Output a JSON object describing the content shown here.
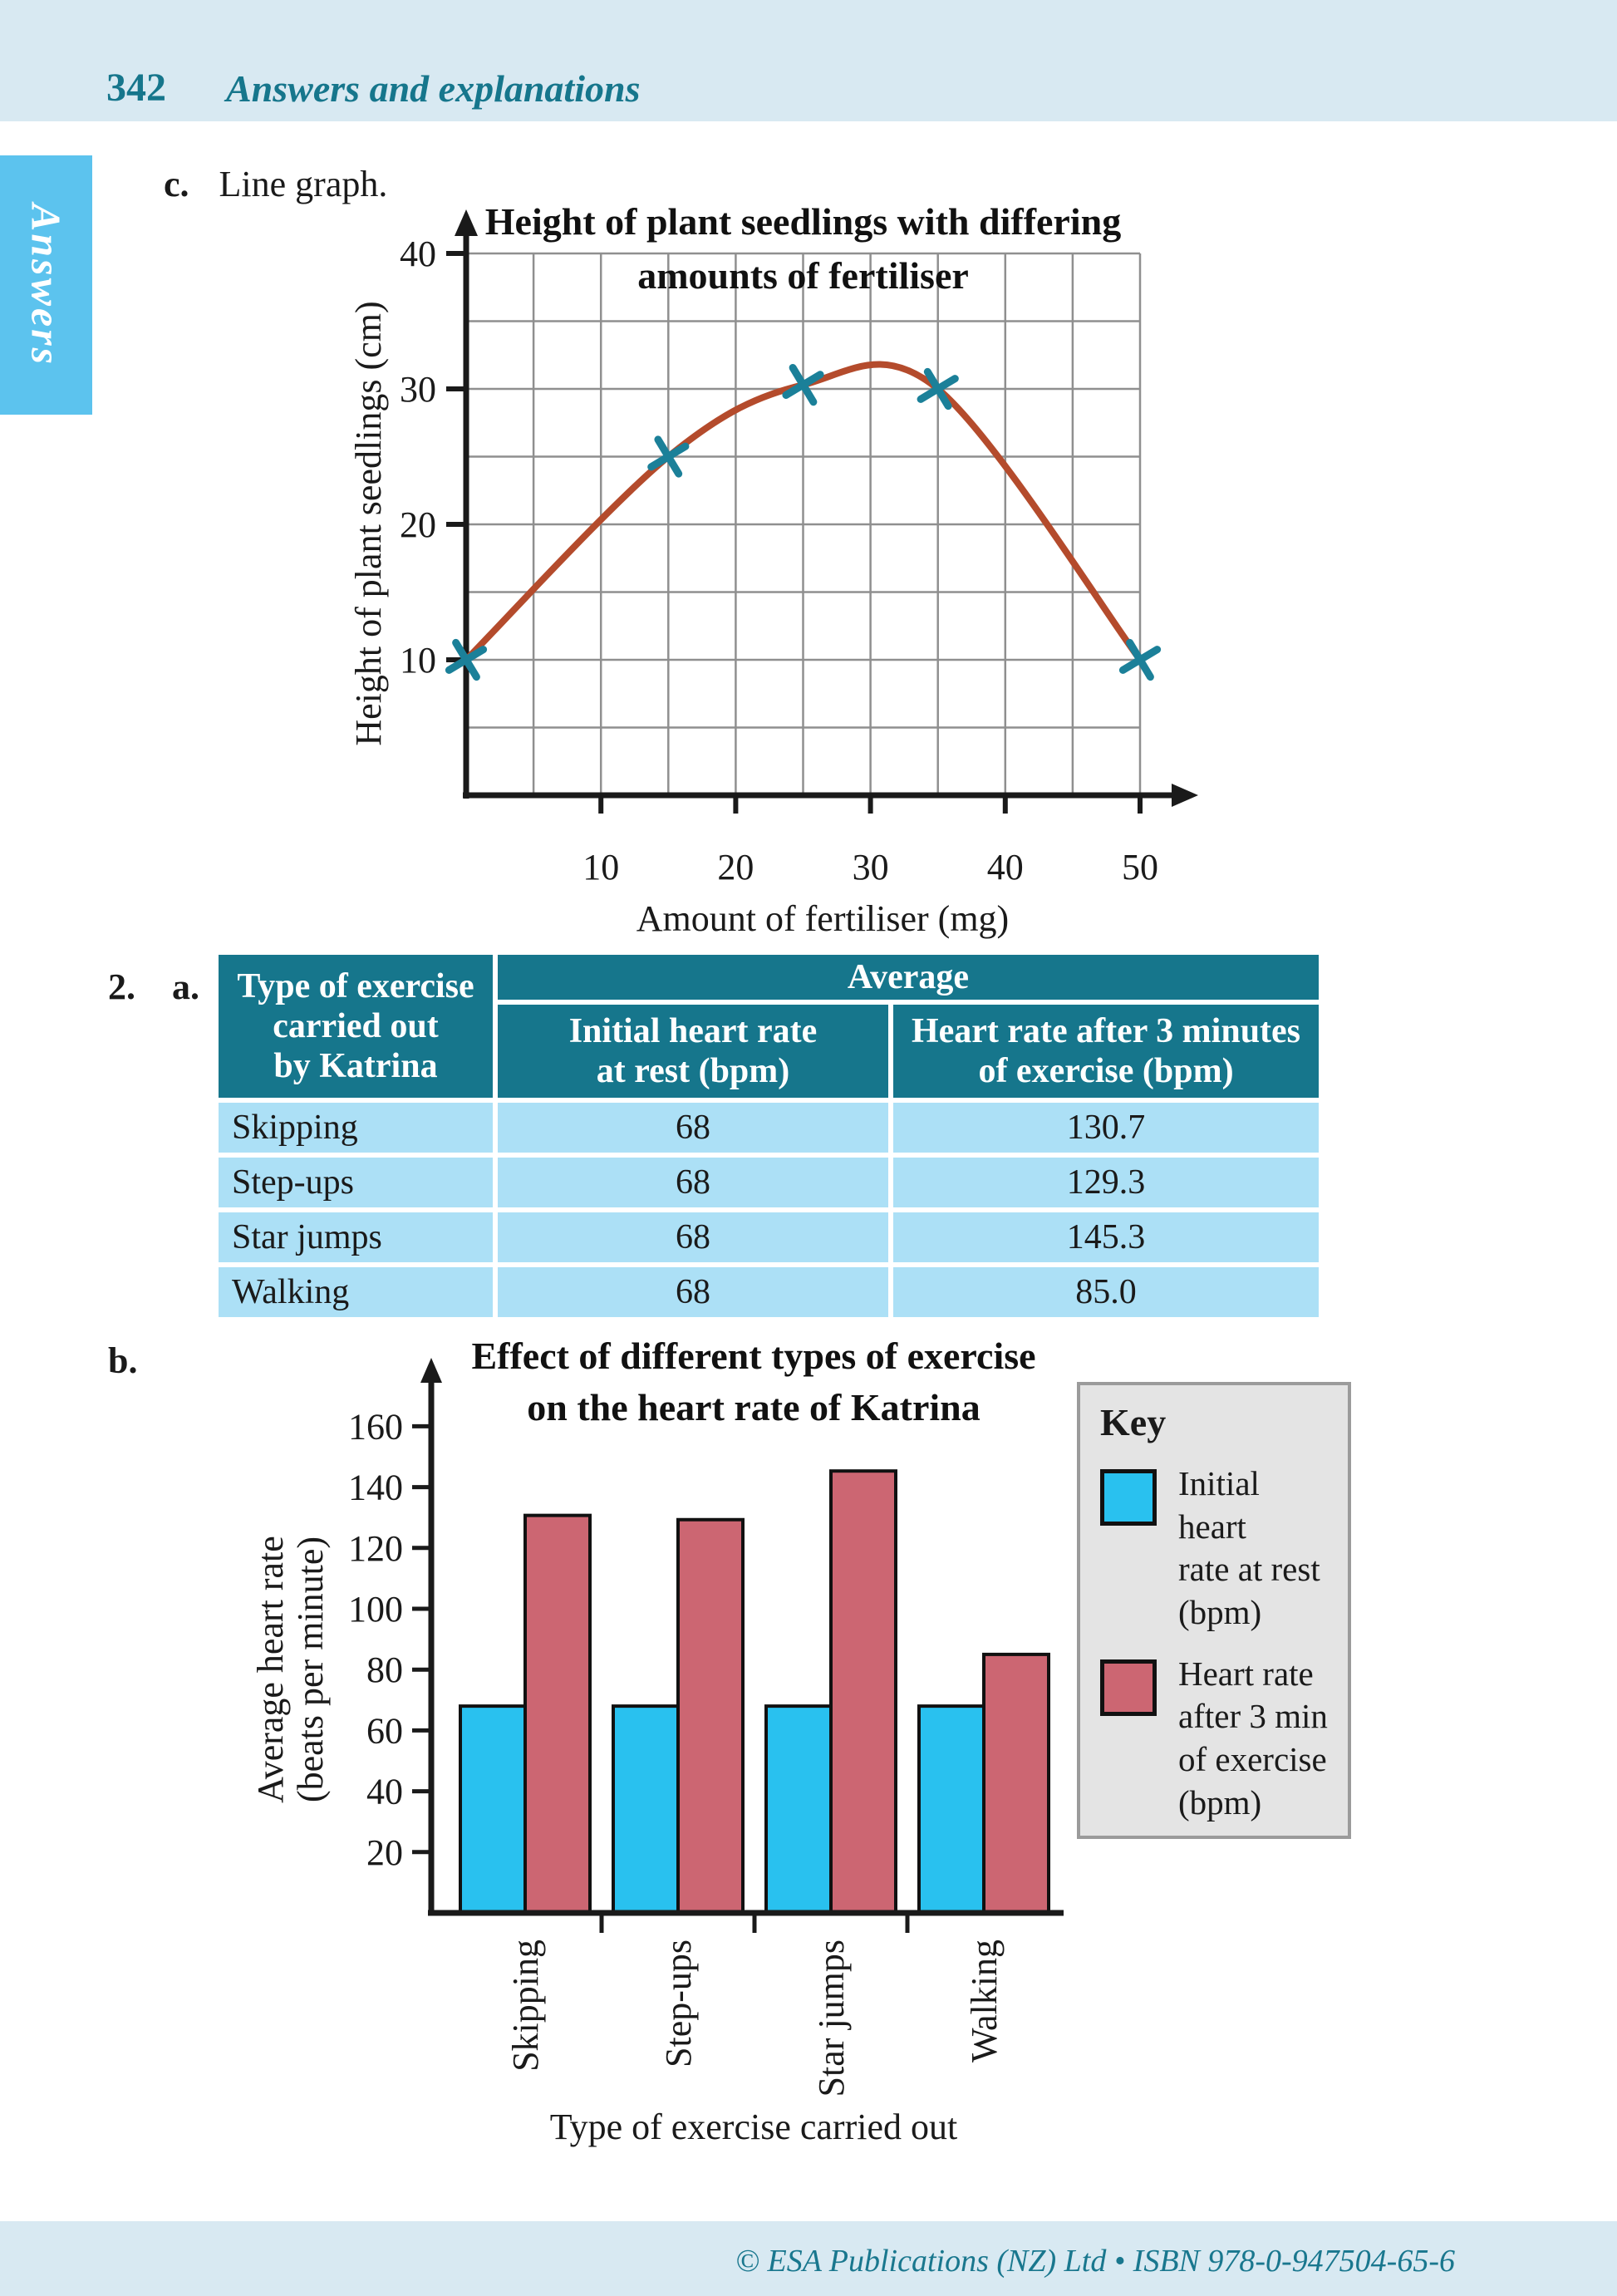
{
  "page": {
    "number": "342",
    "header_title": "Answers and explanations",
    "side_tab": "Answers",
    "footer": "© ESA Publications (NZ) Ltd  •  ISBN 978-0-947504-65-6"
  },
  "section_c": {
    "label": "c.",
    "text": "Line graph."
  },
  "section_2": {
    "number": "2.",
    "letter": "a."
  },
  "section_b": {
    "label": "b."
  },
  "table": {
    "col1_header": "Type of exercise\ncarried out\nby Katrina",
    "group_header": "Average",
    "col2_header": "Initial heart rate\nat rest (bpm)",
    "col3_header": "Heart rate after 3 minutes\nof exercise (bpm)",
    "rows": [
      {
        "exercise": "Skipping",
        "initial": "68",
        "after": "130.7"
      },
      {
        "exercise": "Step-ups",
        "initial": "68",
        "after": "129.3"
      },
      {
        "exercise": "Star jumps",
        "initial": "68",
        "after": "145.3"
      },
      {
        "exercise": "Walking",
        "initial": "68",
        "after": "85.0"
      }
    ]
  },
  "key": {
    "title": "Key",
    "items": [
      {
        "color": "#29c1ef",
        "label": "Initial heart\nrate at rest\n(bpm)"
      },
      {
        "color": "#cc6672",
        "label": "Heart rate\nafter 3 min\nof exercise\n(bpm)"
      }
    ]
  },
  "chart_data": [
    {
      "type": "line",
      "title": [
        "Height of plant seedlings with differing",
        "amounts of fertiliser"
      ],
      "xlabel": "Amount of fertiliser (mg)",
      "ylabel": "Height of plant seedlings (cm)",
      "xlim": [
        0,
        50
      ],
      "ylim": [
        0,
        40
      ],
      "xticks": [
        10,
        20,
        30,
        40,
        50
      ],
      "yticks": [
        10,
        20,
        30,
        40
      ],
      "grid_step": 5,
      "grid": true,
      "line_color": "#b44b2c",
      "marker": "x",
      "marker_color": "#1b8099",
      "points": [
        [
          0,
          10
        ],
        [
          15,
          25
        ],
        [
          25,
          30.3
        ],
        [
          35,
          30
        ],
        [
          50,
          10
        ]
      ]
    },
    {
      "type": "bar",
      "title": [
        "Effect of different types of exercise",
        "on the heart rate of Katrina"
      ],
      "xlabel": "Type of exercise carried out",
      "ylabel": [
        "Average heart rate",
        "(beats per minute)"
      ],
      "categories": [
        "Skipping",
        "Step-ups",
        "Star jumps",
        "Walking"
      ],
      "series": [
        {
          "name": "Initial heart rate at rest (bpm)",
          "color": "#29c1ef",
          "values": [
            68,
            68,
            68,
            68
          ]
        },
        {
          "name": "Heart rate after 3 min of exercise (bpm)",
          "color": "#cc6672",
          "values": [
            130.7,
            129.3,
            145.3,
            85.0
          ]
        }
      ],
      "ylim": [
        0,
        170
      ],
      "yticks": [
        20,
        40,
        60,
        80,
        100,
        120,
        140,
        160
      ],
      "grid": false,
      "legend_position": "right"
    }
  ]
}
